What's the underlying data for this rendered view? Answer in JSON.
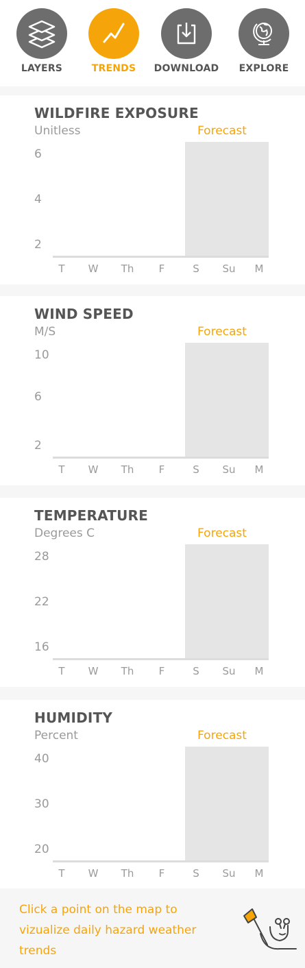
{
  "nav": {
    "items": [
      {
        "label": "LAYERS",
        "icon": "layers-icon",
        "active": false
      },
      {
        "label": "TRENDS",
        "icon": "trend-line-icon",
        "active": true
      },
      {
        "label": "DOWNLOAD",
        "icon": "download-icon",
        "active": false
      },
      {
        "label": "EXPLORE",
        "icon": "globe-icon",
        "active": false
      }
    ]
  },
  "colors": {
    "accent": "#f5a50a",
    "icon_bg": "#6d6d6d",
    "forecast_bg": "#e5e5e5",
    "text_muted": "#9a9a9a",
    "text_dark": "#555555"
  },
  "forecast_label": "Forecast",
  "days": [
    "T",
    "W",
    "Th",
    "F",
    "S",
    "Su",
    "M"
  ],
  "chart_data": [
    {
      "type": "line",
      "title": "WILDFIRE EXPOSURE",
      "ylabel": "Unitless",
      "yticks": [
        "6",
        "4",
        "2"
      ],
      "categories": [
        "T",
        "W",
        "Th",
        "F",
        "S",
        "Su",
        "M"
      ],
      "forecast_start": "S",
      "series": []
    },
    {
      "type": "line",
      "title": "WIND SPEED",
      "ylabel": "M/S",
      "yticks": [
        "10",
        "6",
        "2"
      ],
      "categories": [
        "T",
        "W",
        "Th",
        "F",
        "S",
        "Su",
        "M"
      ],
      "forecast_start": "S",
      "series": []
    },
    {
      "type": "line",
      "title": "TEMPERATURE",
      "ylabel": "Degrees C",
      "yticks": [
        "28",
        "22",
        "16"
      ],
      "categories": [
        "T",
        "W",
        "Th",
        "F",
        "S",
        "Su",
        "M"
      ],
      "forecast_start": "S",
      "series": []
    },
    {
      "type": "line",
      "title": "HUMIDITY",
      "ylabel": "Percent",
      "yticks": [
        "40",
        "30",
        "20"
      ],
      "categories": [
        "T",
        "W",
        "Th",
        "F",
        "S",
        "Su",
        "M"
      ],
      "forecast_start": "S",
      "series": []
    }
  ],
  "footer": {
    "text": "Click a point on the map to vizualize daily hazard weather trends",
    "illustration": "snail-flag-icon"
  }
}
